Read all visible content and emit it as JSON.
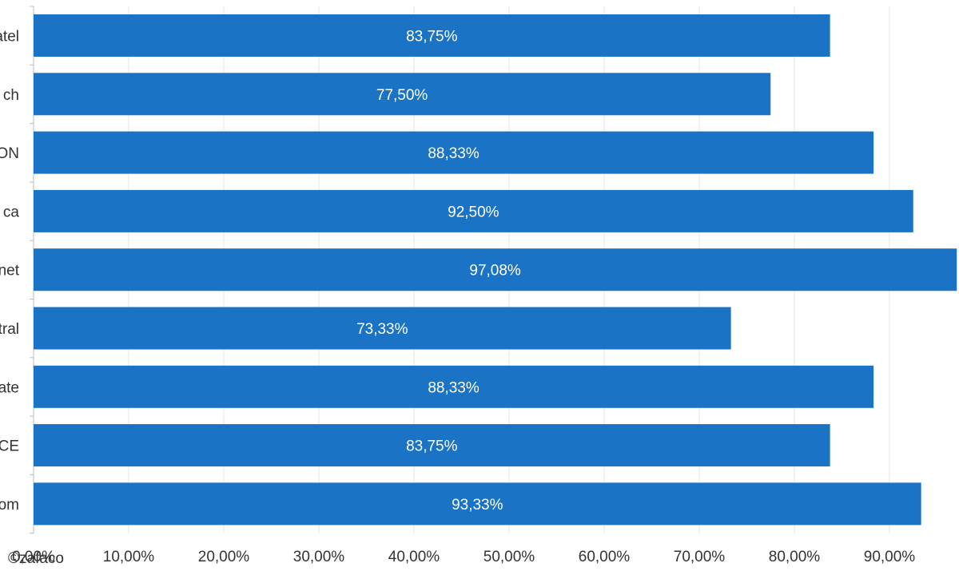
{
  "chart_data": {
    "type": "bar",
    "orientation": "horizontal",
    "categories": [
      "atel",
      "ch",
      "ON",
      "ca",
      "net",
      "tral",
      "ate",
      "CE",
      "om"
    ],
    "values": [
      83.75,
      77.5,
      88.33,
      92.5,
      97.08,
      73.33,
      88.33,
      83.75,
      93.33
    ],
    "value_labels": [
      "83,75%",
      "77,50%",
      "88,33%",
      "92,50%",
      "97,08%",
      "73,33%",
      "88,33%",
      "83,75%",
      "93,33%"
    ],
    "xlim": [
      0,
      100
    ],
    "x_ticks": [
      0,
      10,
      20,
      30,
      40,
      50,
      60,
      70,
      80,
      90
    ],
    "x_tick_labels": [
      "0,00%",
      "10,00%",
      "20,00%",
      "30,00%",
      "40,00%",
      "50,00%",
      "60,00%",
      "70,00%",
      "80,00%",
      "90,00%"
    ],
    "grid": true,
    "bar_color": "#1a73c4",
    "grid_color": "#e6e6e6",
    "axis_color": "#bdbdbd"
  },
  "watermark": "©zafaco"
}
